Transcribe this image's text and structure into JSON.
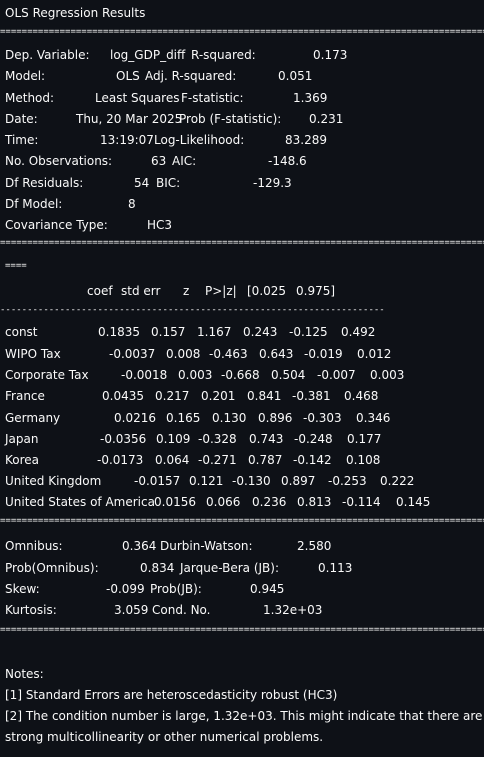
{
  "title": "OLS Regression Results",
  "separators": {
    "double": "================================================================================================================",
    "single": "--------------------------------------------------------------------------------------------------------------",
    "tail": "===="
  },
  "summary": {
    "dep_variable": {
      "label": "Dep. Variable:",
      "value": "log_GDP_diff"
    },
    "model": {
      "label": "Model:",
      "value": "OLS"
    },
    "method": {
      "label": "Method:",
      "value": "Least Squares"
    },
    "date": {
      "label": "Date:",
      "value": "Thu, 20 Mar 2025"
    },
    "time": {
      "label": "Time:",
      "value": "13:19:07"
    },
    "no_obs": {
      "label": "No. Observations:",
      "value": "63"
    },
    "df_resid": {
      "label": "Df Residuals:",
      "value": "54"
    },
    "df_model": {
      "label": "Df Model:",
      "value": "8"
    },
    "cov_type": {
      "label": "Covariance Type:",
      "value": "HC3"
    },
    "r_squared": {
      "label": "R-squared:",
      "value": "0.173"
    },
    "adj_r_squared": {
      "label": "Adj. R-squared:",
      "value": "0.051"
    },
    "f_stat": {
      "label": "F-statistic:",
      "value": "1.369"
    },
    "prob_f": {
      "label": "Prob (F-statistic):",
      "value": "0.231"
    },
    "log_lik": {
      "label": "Log-Likelihood:",
      "value": "83.289"
    },
    "aic": {
      "label": "AIC:",
      "value": "-148.6"
    },
    "bic": {
      "label": "BIC:",
      "value": "-129.3"
    }
  },
  "coef_table": {
    "headers": [
      "coef",
      "std err",
      "z",
      "P>|z|",
      "[0.025",
      "0.975]"
    ],
    "rows": [
      {
        "name": "const",
        "values": [
          "0.1835",
          "0.157",
          "1.167",
          "0.243",
          "-0.125",
          "0.492"
        ]
      },
      {
        "name": "WIPO Tax",
        "values": [
          "-0.0037",
          "0.008",
          "-0.463",
          "0.643",
          "-0.019",
          "0.012"
        ]
      },
      {
        "name": "Corporate Tax",
        "values": [
          "-0.0018",
          "0.003",
          "-0.668",
          "0.504",
          "-0.007",
          "0.003"
        ]
      },
      {
        "name": "France",
        "values": [
          "0.0435",
          "0.217",
          "0.201",
          "0.841",
          "-0.381",
          "0.468"
        ]
      },
      {
        "name": "Germany",
        "values": [
          "0.0216",
          "0.165",
          "0.130",
          "0.896",
          "-0.303",
          "0.346"
        ]
      },
      {
        "name": "Japan",
        "values": [
          "-0.0356",
          "0.109",
          "-0.328",
          "0.743",
          "-0.248",
          "0.177"
        ]
      },
      {
        "name": "Korea",
        "values": [
          "-0.0173",
          "0.064",
          "-0.271",
          "0.787",
          "-0.142",
          "0.108"
        ]
      },
      {
        "name": "United Kingdom",
        "values": [
          "-0.0157",
          "0.121",
          "-0.130",
          "0.897",
          "-0.253",
          "0.222"
        ]
      },
      {
        "name": "United States of America",
        "values": [
          "0.0156",
          "0.066",
          "0.236",
          "0.813",
          "-0.114",
          "0.145"
        ]
      }
    ]
  },
  "diagnostics": {
    "omnibus": {
      "label": "Omnibus:",
      "value": "0.364"
    },
    "prob_omnibus": {
      "label": "Prob(Omnibus):",
      "value": "0.834"
    },
    "skew": {
      "label": "Skew:",
      "value": "-0.099"
    },
    "kurtosis": {
      "label": "Kurtosis:",
      "value": "3.059"
    },
    "durbin_watson": {
      "label": "Durbin-Watson:",
      "value": "2.580"
    },
    "jarque_bera": {
      "label": "Jarque-Bera (JB):",
      "value": "0.113"
    },
    "prob_jb": {
      "label": "Prob(JB):",
      "value": "0.945"
    },
    "cond_no": {
      "label": "Cond. No.",
      "value": "1.32e+03"
    }
  },
  "notes": {
    "heading": "Notes:",
    "note1": "[1] Standard Errors are heteroscedasticity robust (HC3)",
    "note2_line1": "[2] The condition number is large, 1.32e+03. This might indicate that there are",
    "note2_line2": "strong multicollinearity or other numerical problems."
  }
}
